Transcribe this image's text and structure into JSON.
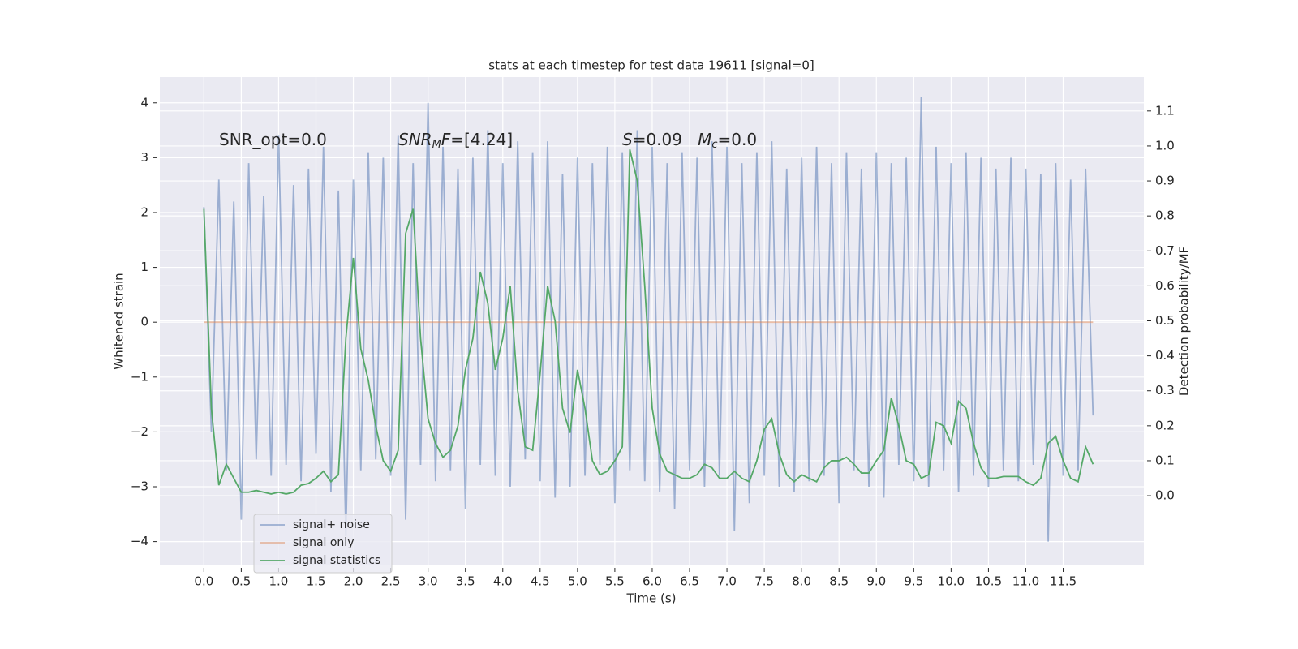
{
  "chart_data": {
    "type": "line",
    "title": "stats at each timestep for test data 19611 [signal=0]",
    "xlabel": "Time (s)",
    "ylabel": "Whitened strain",
    "y2label": "Detection probability/MF",
    "annotations": [
      [
        {
          "text": "SNR_opt=0.0"
        }
      ],
      [
        {
          "text": "SNR",
          "italic": true
        },
        {
          "text": "M",
          "italic": true,
          "sub": true
        },
        {
          "text": "F",
          "italic": true
        },
        {
          "text": "=[4.24]"
        }
      ],
      [
        {
          "text": "S",
          "italic": true
        },
        {
          "text": "=0.09   "
        },
        {
          "text": "M",
          "italic": true
        },
        {
          "text": "c",
          "italic": true,
          "sub": true
        },
        {
          "text": "=0.0"
        }
      ]
    ],
    "x": [
      0,
      0.1,
      0.2,
      0.3,
      0.4,
      0.5,
      0.6,
      0.7,
      0.8,
      0.9,
      1,
      1.1,
      1.2,
      1.3,
      1.4,
      1.5,
      1.6,
      1.7,
      1.8,
      1.9,
      2,
      2.1,
      2.2,
      2.3,
      2.4,
      2.5,
      2.6,
      2.7,
      2.8,
      2.9,
      3,
      3.1,
      3.2,
      3.3,
      3.4,
      3.5,
      3.6,
      3.7,
      3.8,
      3.9,
      4,
      4.1,
      4.2,
      4.3,
      4.4,
      4.5,
      4.6,
      4.7,
      4.8,
      4.9,
      5,
      5.1,
      5.2,
      5.3,
      5.4,
      5.5,
      5.6,
      5.7,
      5.8,
      5.9,
      6,
      6.1,
      6.2,
      6.3,
      6.4,
      6.5,
      6.6,
      6.7,
      6.8,
      6.9,
      7,
      7.1,
      7.2,
      7.3,
      7.4,
      7.5,
      7.6,
      7.7,
      7.8,
      7.9,
      8,
      8.1,
      8.2,
      8.3,
      8.4,
      8.5,
      8.6,
      8.7,
      8.8,
      8.9,
      9,
      9.1,
      9.2,
      9.3,
      9.4,
      9.5,
      9.6,
      9.7,
      9.8,
      9.9,
      10,
      10.1,
      10.2,
      10.3,
      10.4,
      10.5,
      10.6,
      10.7,
      10.8,
      10.9,
      11,
      11.1,
      11.2,
      11.3,
      11.4,
      11.5,
      11.6,
      11.7,
      11.8,
      11.9
    ],
    "series": [
      {
        "name": "signal+ noise",
        "color": "#4c72b0",
        "opacity": 0.5,
        "values": [
          2.1,
          -2.0,
          2.6,
          -2.7,
          2.2,
          -3.6,
          2.9,
          -2.5,
          2.3,
          -2.8,
          3.4,
          -2.6,
          2.5,
          -2.9,
          2.8,
          -2.4,
          3.2,
          -3.1,
          2.4,
          -3.9,
          2.6,
          -2.7,
          3.1,
          -2.5,
          3.0,
          -2.8,
          3.4,
          -3.6,
          2.9,
          -2.6,
          4.0,
          -2.9,
          3.2,
          -2.7,
          2.8,
          -3.4,
          3.0,
          -2.6,
          3.5,
          -2.8,
          2.9,
          -3.0,
          3.3,
          -2.5,
          3.1,
          -2.9,
          3.3,
          -3.2,
          2.7,
          -3.0,
          3.0,
          -2.8,
          2.9,
          -2.6,
          3.2,
          -3.3,
          3.1,
          -2.7,
          3.5,
          -2.9,
          3.2,
          -3.1,
          2.9,
          -3.4,
          3.1,
          -2.7,
          3.0,
          -3.0,
          3.3,
          -2.8,
          3.2,
          -3.8,
          2.9,
          -3.3,
          3.1,
          -2.8,
          3.3,
          -3.0,
          2.8,
          -3.1,
          3.0,
          -2.9,
          3.2,
          -2.8,
          2.9,
          -3.3,
          3.1,
          -2.7,
          2.8,
          -3.0,
          3.1,
          -3.2,
          2.9,
          -2.6,
          3.0,
          -2.9,
          4.1,
          -3.0,
          3.2,
          -2.7,
          2.9,
          -3.1,
          3.1,
          -2.8,
          3.0,
          -3.0,
          2.8,
          -2.7,
          3.0,
          -2.9,
          2.8,
          -2.6,
          2.7,
          -4.0,
          2.9,
          -2.8,
          2.6,
          -2.7,
          2.8,
          -1.7
        ]
      },
      {
        "name": "signal only",
        "color": "#dd8452",
        "opacity": 0.5,
        "values": [
          0,
          0,
          0,
          0,
          0,
          0,
          0,
          0,
          0,
          0,
          0,
          0,
          0,
          0,
          0,
          0,
          0,
          0,
          0,
          0,
          0,
          0,
          0,
          0,
          0,
          0,
          0,
          0,
          0,
          0,
          0,
          0,
          0,
          0,
          0,
          0,
          0,
          0,
          0,
          0,
          0,
          0,
          0,
          0,
          0,
          0,
          0,
          0,
          0,
          0,
          0,
          0,
          0,
          0,
          0,
          0,
          0,
          0,
          0,
          0,
          0,
          0,
          0,
          0,
          0,
          0,
          0,
          0,
          0,
          0,
          0,
          0,
          0,
          0,
          0,
          0,
          0,
          0,
          0,
          0,
          0,
          0,
          0,
          0,
          0,
          0,
          0,
          0,
          0,
          0,
          0,
          0,
          0,
          0,
          0,
          0,
          0,
          0,
          0,
          0,
          0,
          0,
          0,
          0,
          0,
          0,
          0,
          0,
          0,
          0,
          0,
          0,
          0,
          0,
          0,
          0,
          0,
          0,
          0,
          0
        ]
      },
      {
        "name": "signal statistics",
        "color": "#55a868",
        "opacity": 1,
        "axis": "y2",
        "values": [
          0.82,
          0.25,
          0.03,
          0.09,
          0.05,
          0.01,
          0.01,
          0.015,
          0.01,
          0.005,
          0.01,
          0.005,
          0.01,
          0.03,
          0.035,
          0.05,
          0.07,
          0.04,
          0.06,
          0.45,
          0.68,
          0.42,
          0.33,
          0.2,
          0.1,
          0.07,
          0.13,
          0.75,
          0.82,
          0.45,
          0.22,
          0.15,
          0.11,
          0.13,
          0.2,
          0.36,
          0.45,
          0.64,
          0.55,
          0.36,
          0.45,
          0.6,
          0.3,
          0.14,
          0.13,
          0.35,
          0.6,
          0.5,
          0.25,
          0.18,
          0.36,
          0.25,
          0.1,
          0.06,
          0.07,
          0.1,
          0.14,
          0.99,
          0.9,
          0.6,
          0.25,
          0.12,
          0.07,
          0.06,
          0.05,
          0.05,
          0.06,
          0.09,
          0.08,
          0.05,
          0.05,
          0.07,
          0.05,
          0.04,
          0.1,
          0.19,
          0.22,
          0.12,
          0.06,
          0.04,
          0.06,
          0.05,
          0.04,
          0.08,
          0.1,
          0.1,
          0.11,
          0.09,
          0.065,
          0.065,
          0.1,
          0.13,
          0.28,
          0.2,
          0.1,
          0.09,
          0.05,
          0.06,
          0.21,
          0.2,
          0.15,
          0.27,
          0.25,
          0.15,
          0.08,
          0.05,
          0.05,
          0.055,
          0.055,
          0.055,
          0.04,
          0.03,
          0.05,
          0.15,
          0.17,
          0.1,
          0.05,
          0.04,
          0.14,
          0.09
        ]
      }
    ],
    "xlim": [
      -0.59,
      12.58
    ],
    "xticks": [
      {
        "value": 0,
        "label": "0.0"
      },
      0.5,
      {
        "value": 1,
        "label": "1.0"
      },
      1.5,
      {
        "value": 2,
        "label": "2.0"
      },
      2.5,
      {
        "value": 3,
        "label": "3.0"
      },
      3.5,
      {
        "value": 4,
        "label": "4.0"
      },
      4.5,
      {
        "value": 5,
        "label": "5.0"
      },
      5.5,
      {
        "value": 6,
        "label": "6.0"
      },
      6.5,
      {
        "value": 7,
        "label": "7.0"
      },
      7.5,
      {
        "value": 8,
        "label": "8.0"
      },
      8.5,
      {
        "value": 9,
        "label": "9.0"
      },
      9.5,
      {
        "value": 10,
        "label": "10.0"
      },
      10.5,
      {
        "value": 11,
        "label": "11.0"
      },
      11.5
    ],
    "ylim": [
      -4.42,
      4.47
    ],
    "yticks": [
      {
        "value": -4,
        "label": "−4"
      },
      {
        "value": -3,
        "label": "−3"
      },
      {
        "value": -2,
        "label": "−2"
      },
      {
        "value": -1,
        "label": "−1"
      },
      0,
      1,
      2,
      3,
      4
    ],
    "y2lim": [
      -0.197,
      1.197
    ],
    "y2ticks": [
      {
        "value": 0,
        "label": "0.0"
      },
      0.1,
      0.2,
      0.3,
      0.4,
      0.5,
      0.6,
      0.7,
      0.8,
      0.9,
      {
        "value": 1,
        "label": "1.0"
      },
      1.1
    ],
    "grid": true,
    "legend": "lower left"
  }
}
